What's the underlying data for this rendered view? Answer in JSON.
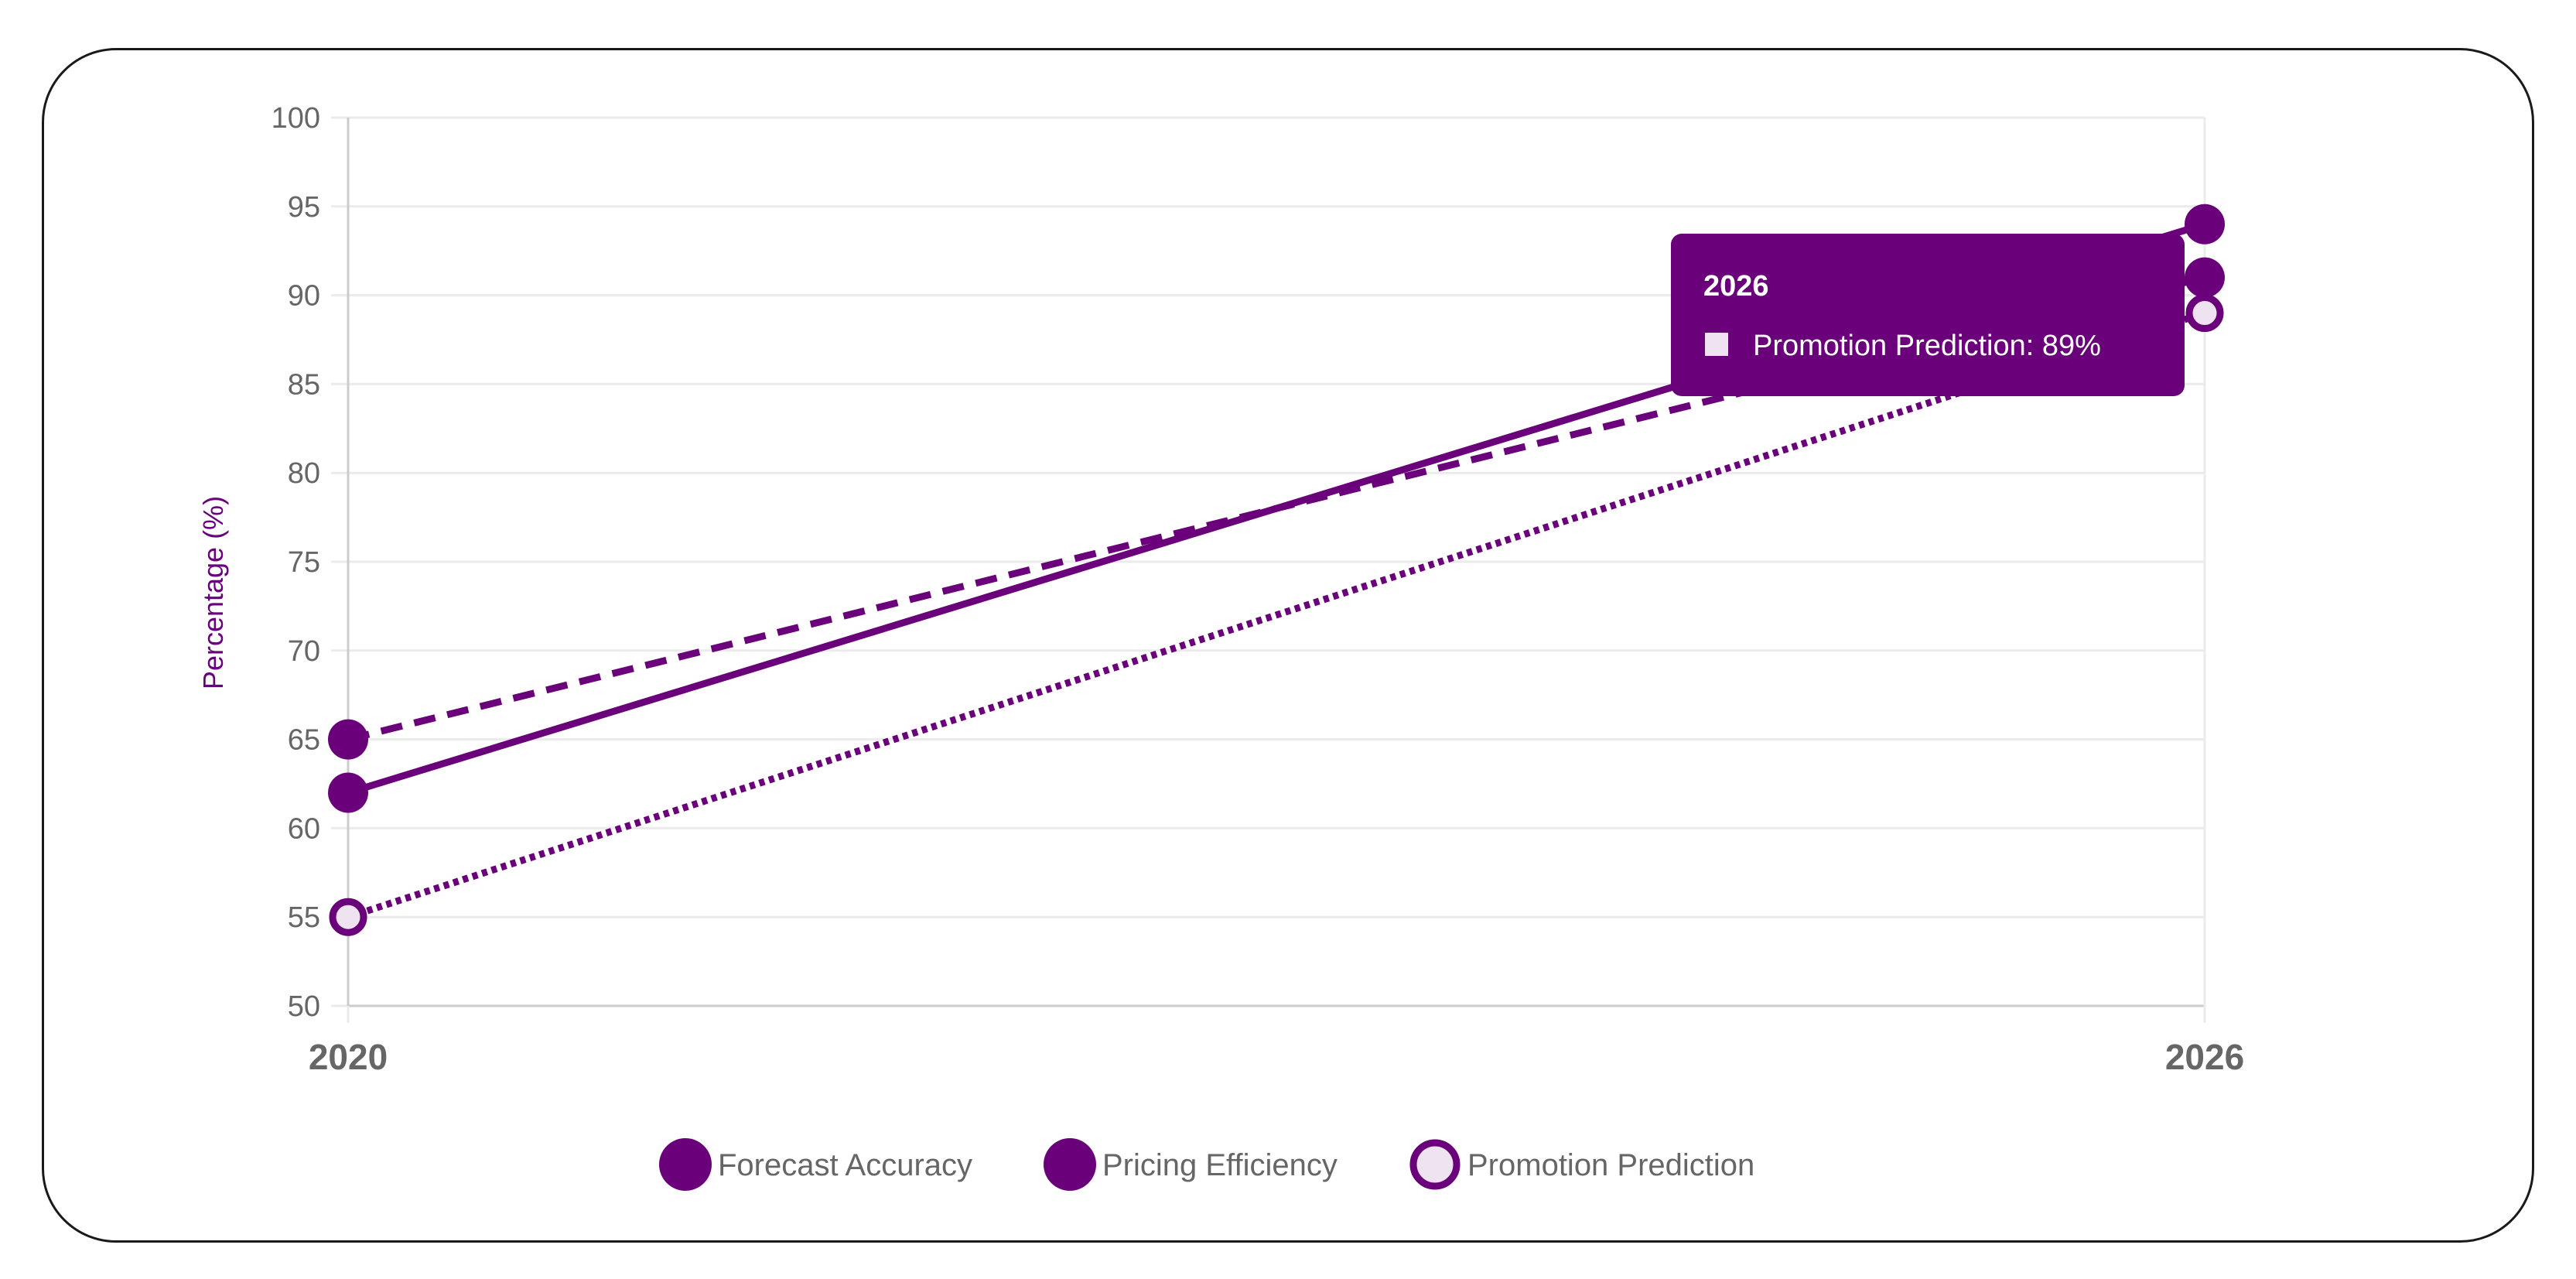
{
  "colors": {
    "series": "#6a007a",
    "grid": "#ebebeb",
    "axis": "#cccccc",
    "tick_text": "#666666",
    "promo_fill": "#efe3f2",
    "tooltip_bg": "#6a007a",
    "tooltip_swatch": "#efe3f2"
  },
  "chart_data": {
    "type": "line",
    "x": [
      "2020",
      "2026"
    ],
    "ylabel": "Percentage (%)",
    "ylim": [
      50,
      100
    ],
    "yticks": [
      50,
      55,
      60,
      65,
      70,
      75,
      80,
      85,
      90,
      95,
      100
    ],
    "grid": true,
    "legend_position": "bottom",
    "series": [
      {
        "name": "Forecast Accuracy",
        "values": [
          62,
          94
        ],
        "dash": "solid",
        "marker": "filled"
      },
      {
        "name": "Pricing Efficiency",
        "values": [
          65,
          91
        ],
        "dash": "dashed",
        "marker": "filled"
      },
      {
        "name": "Promotion Prediction",
        "values": [
          55,
          89
        ],
        "dash": "dotted",
        "marker": "hollow"
      }
    ],
    "tooltip": {
      "title": "2026",
      "label": "Promotion Prediction: 89%",
      "series_index": 2,
      "x_index": 1
    }
  }
}
